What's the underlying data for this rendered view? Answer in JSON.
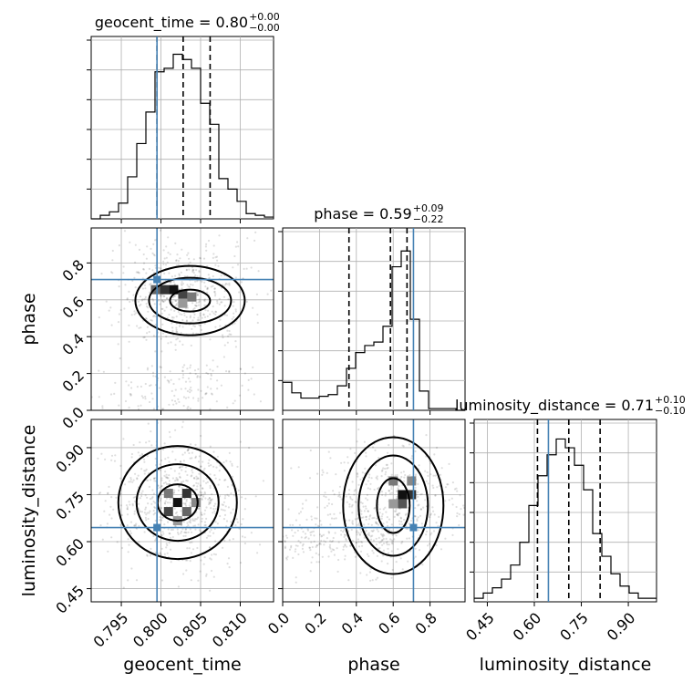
{
  "chart_data": {
    "type": "corner",
    "parameters": [
      "geocent_time",
      "phase",
      "luminosity_distance"
    ],
    "truths": {
      "geocent_time": 0.7995,
      "phase": 0.71,
      "luminosity_distance": 0.645
    },
    "titles": [
      {
        "name": "geocent_time",
        "value": "0.80",
        "plus": "+0.00",
        "minus": "−0.00"
      },
      {
        "name": "phase",
        "value": "0.59",
        "plus": "+0.09",
        "minus": "−0.22"
      },
      {
        "name": "luminosity_distance",
        "value": "0.71",
        "plus": "+0.10",
        "minus": "−0.10"
      }
    ],
    "axes": {
      "geocent_time": {
        "range": [
          0.7912,
          0.8142
        ],
        "ticks": [
          "0.795",
          "0.800",
          "0.805",
          "0.810"
        ],
        "tick_values": [
          0.795,
          0.8,
          0.805,
          0.81
        ],
        "quantiles": [
          0.7995,
          0.8028,
          0.8062
        ],
        "label": "geocent_time"
      },
      "phase": {
        "range": [
          0.0,
          0.99
        ],
        "ticks": [
          "0.0",
          "0.2",
          "0.4",
          "0.6",
          "0.8"
        ],
        "tick_values": [
          0.0,
          0.2,
          0.4,
          0.6,
          0.8
        ],
        "quantiles": [
          0.36,
          0.585,
          0.675
        ],
        "label": "phase"
      },
      "luminosity_distance": {
        "range": [
          0.408,
          0.99
        ],
        "ticks": [
          "0.45",
          "0.60",
          "0.75",
          "0.90"
        ],
        "tick_values": [
          0.45,
          0.6,
          0.75,
          0.9
        ],
        "quantiles": [
          0.61,
          0.71,
          0.81
        ],
        "label": "luminosity_distance"
      }
    },
    "histograms": {
      "geocent_time": {
        "bin_edges": [
          0.7912,
          0.79235,
          0.7935,
          0.79465,
          0.7958,
          0.79695,
          0.7981,
          0.79925,
          0.8004,
          0.80155,
          0.8027,
          0.80385,
          0.805,
          0.80615,
          0.8073,
          0.80845,
          0.8096,
          0.81075,
          0.8119,
          0.81305,
          0.8142
        ],
        "counts": [
          0.0,
          0.02,
          0.04,
          0.09,
          0.24,
          0.43,
          0.61,
          0.84,
          0.86,
          0.94,
          0.91,
          0.86,
          0.66,
          0.54,
          0.23,
          0.17,
          0.1,
          0.03,
          0.02,
          0.01
        ]
      },
      "phase": {
        "bin_edges": [
          0.0,
          0.0495,
          0.099,
          0.1485,
          0.198,
          0.2475,
          0.297,
          0.3465,
          0.396,
          0.4455,
          0.495,
          0.5445,
          0.594,
          0.6435,
          0.693,
          0.7425,
          0.792,
          0.8415,
          0.891,
          0.9405,
          0.99
        ],
        "counts": [
          0.16,
          0.1,
          0.07,
          0.07,
          0.08,
          0.09,
          0.14,
          0.24,
          0.33,
          0.37,
          0.39,
          0.48,
          0.82,
          0.91,
          0.52,
          0.11,
          0.01,
          0.01,
          0.01,
          0.0
        ]
      },
      "luminosity_distance": {
        "bin_edges": [
          0.408,
          0.4371,
          0.4662,
          0.4953,
          0.5244,
          0.5535,
          0.5826,
          0.6117,
          0.6408,
          0.6699,
          0.699,
          0.7281,
          0.7572,
          0.7863,
          0.8154,
          0.8445,
          0.8736,
          0.9027,
          0.9318,
          0.9609,
          0.99
        ],
        "counts": [
          0.02,
          0.05,
          0.08,
          0.13,
          0.21,
          0.34,
          0.55,
          0.72,
          0.84,
          0.93,
          0.88,
          0.78,
          0.64,
          0.39,
          0.26,
          0.16,
          0.09,
          0.05,
          0.02,
          0.02
        ]
      }
    },
    "densities_2d": [
      {
        "x": "geocent_time",
        "y": "phase",
        "peak": [
          0.8016,
          0.655
        ]
      },
      {
        "x": "geocent_time",
        "y": "luminosity_distance",
        "peak": [
          0.8021,
          0.725
        ]
      },
      {
        "x": "phase",
        "y": "luminosity_distance",
        "peak": [
          0.65,
          0.75
        ]
      }
    ],
    "grid": true,
    "truth_color": "#4682b4"
  }
}
